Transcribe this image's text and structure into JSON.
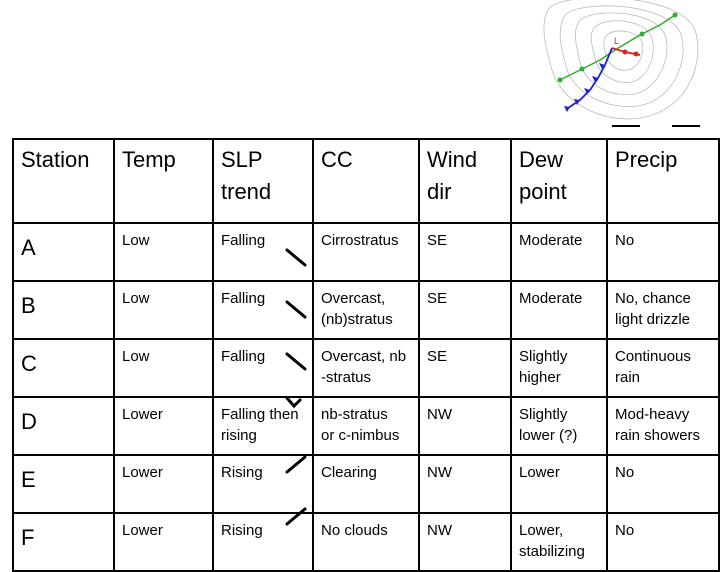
{
  "table": {
    "header": [
      [
        "Station"
      ],
      [
        "Temp"
      ],
      [
        "SLP",
        "trend"
      ],
      [
        "CC"
      ],
      [
        "Wind",
        "dir"
      ],
      [
        "Dew",
        "point"
      ],
      [
        "Precip"
      ]
    ],
    "rows": [
      [
        [
          "A"
        ],
        [
          "Low"
        ],
        [
          "Falling"
        ],
        [
          "Cirrostratus"
        ],
        [
          "SE"
        ],
        [
          "Moderate"
        ],
        [
          "No"
        ]
      ],
      [
        [
          "B"
        ],
        [
          "Low"
        ],
        [
          "Falling"
        ],
        [
          "Overcast,",
          "(nb)stratus"
        ],
        [
          "SE"
        ],
        [
          "Moderate"
        ],
        [
          "No, chance",
          "light drizzle"
        ]
      ],
      [
        [
          "C"
        ],
        [
          "Low"
        ],
        [
          "Falling"
        ],
        [
          "Overcast, nb",
          "-stratus"
        ],
        [
          "SE"
        ],
        [
          "Slightly",
          "higher"
        ],
        [
          "Continuous",
          "rain"
        ]
      ],
      [
        [
          "D"
        ],
        [
          "Lower"
        ],
        [
          "Falling then",
          "rising"
        ],
        [
          "nb-stratus",
          "or c-nimbus"
        ],
        [
          "NW"
        ],
        [
          "Slightly",
          "lower (?)"
        ],
        [
          "Mod-heavy",
          "rain showers"
        ]
      ],
      [
        [
          "E"
        ],
        [
          "Lower"
        ],
        [
          "Rising"
        ],
        [
          "Clearing"
        ],
        [
          "NW"
        ],
        [
          "Lower"
        ],
        [
          "No"
        ]
      ],
      [
        [
          "F"
        ],
        [
          "Lower"
        ],
        [
          "Rising"
        ],
        [
          "No clouds"
        ],
        [
          "NW"
        ],
        [
          "Lower,",
          "stabilizing"
        ],
        [
          "No"
        ]
      ]
    ]
  }
}
